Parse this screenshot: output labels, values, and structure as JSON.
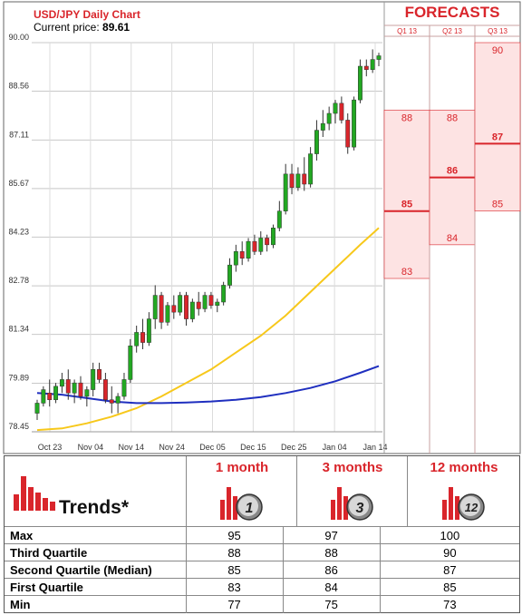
{
  "header": {
    "chart_title": "USD/JPY Daily Chart",
    "price_label": "Current price:",
    "price_value": "89.61",
    "forecasts_title": "FORECASTS"
  },
  "colors": {
    "accent_red": "#d9252b",
    "band_fill": "#fde3e3",
    "ma_short": "#f7c81b",
    "ma_long": "#1f2fbf",
    "candle_up": "#22a822",
    "candle_down": "#d9252b"
  },
  "chart_data": [
    {
      "type": "candlestick",
      "title": "USD/JPY Daily Chart",
      "subtitle": "Current price: 89.61",
      "ylim": [
        78.45,
        90.0
      ],
      "yticks": [
        "90.00",
        "88.56",
        "87.11",
        "85.67",
        "84.23",
        "82.78",
        "81.34",
        "79.89",
        "78.45"
      ],
      "xticks": [
        "Oct 23",
        "Nov 04",
        "Nov 14",
        "Nov 24",
        "Dec 05",
        "Dec 15",
        "Dec 25",
        "Jan 04",
        "Jan 14"
      ],
      "grid": true,
      "candles": [
        {
          "o": 79.0,
          "h": 79.4,
          "l": 78.8,
          "c": 79.3
        },
        {
          "o": 79.3,
          "h": 79.8,
          "l": 79.2,
          "c": 79.7
        },
        {
          "o": 79.6,
          "h": 80.0,
          "l": 79.2,
          "c": 79.4
        },
        {
          "o": 79.4,
          "h": 79.9,
          "l": 79.3,
          "c": 79.8
        },
        {
          "o": 79.8,
          "h": 80.2,
          "l": 79.6,
          "c": 80.0
        },
        {
          "o": 80.0,
          "h": 80.3,
          "l": 79.4,
          "c": 79.6
        },
        {
          "o": 79.6,
          "h": 80.0,
          "l": 79.3,
          "c": 79.9
        },
        {
          "o": 79.9,
          "h": 80.1,
          "l": 79.4,
          "c": 79.5
        },
        {
          "o": 79.5,
          "h": 79.8,
          "l": 79.2,
          "c": 79.7
        },
        {
          "o": 79.7,
          "h": 80.5,
          "l": 79.5,
          "c": 80.3
        },
        {
          "o": 80.3,
          "h": 80.5,
          "l": 79.9,
          "c": 80.0
        },
        {
          "o": 80.0,
          "h": 80.2,
          "l": 79.3,
          "c": 79.4
        },
        {
          "o": 79.4,
          "h": 79.8,
          "l": 79.0,
          "c": 79.3
        },
        {
          "o": 79.3,
          "h": 79.6,
          "l": 79.0,
          "c": 79.5
        },
        {
          "o": 79.5,
          "h": 80.2,
          "l": 79.4,
          "c": 80.0
        },
        {
          "o": 80.0,
          "h": 81.2,
          "l": 79.9,
          "c": 81.0
        },
        {
          "o": 81.0,
          "h": 81.6,
          "l": 80.8,
          "c": 81.4
        },
        {
          "o": 81.4,
          "h": 81.8,
          "l": 80.9,
          "c": 81.1
        },
        {
          "o": 81.1,
          "h": 82.0,
          "l": 81.0,
          "c": 81.8
        },
        {
          "o": 81.8,
          "h": 82.8,
          "l": 81.5,
          "c": 82.5
        },
        {
          "o": 82.5,
          "h": 82.6,
          "l": 81.5,
          "c": 81.7
        },
        {
          "o": 81.7,
          "h": 82.3,
          "l": 81.6,
          "c": 82.2
        },
        {
          "o": 82.2,
          "h": 82.5,
          "l": 81.8,
          "c": 82.0
        },
        {
          "o": 82.0,
          "h": 82.6,
          "l": 81.9,
          "c": 82.5
        },
        {
          "o": 82.5,
          "h": 82.6,
          "l": 81.6,
          "c": 81.8
        },
        {
          "o": 81.8,
          "h": 82.4,
          "l": 81.7,
          "c": 82.3
        },
        {
          "o": 82.3,
          "h": 82.6,
          "l": 81.9,
          "c": 82.1
        },
        {
          "o": 82.1,
          "h": 82.6,
          "l": 82.0,
          "c": 82.5
        },
        {
          "o": 82.5,
          "h": 82.6,
          "l": 82.1,
          "c": 82.2
        },
        {
          "o": 82.2,
          "h": 82.4,
          "l": 82.0,
          "c": 82.3
        },
        {
          "o": 82.3,
          "h": 82.9,
          "l": 82.2,
          "c": 82.8
        },
        {
          "o": 82.8,
          "h": 83.6,
          "l": 82.7,
          "c": 83.4
        },
        {
          "o": 83.4,
          "h": 84.0,
          "l": 83.2,
          "c": 83.8
        },
        {
          "o": 83.8,
          "h": 84.1,
          "l": 83.4,
          "c": 83.6
        },
        {
          "o": 83.6,
          "h": 84.2,
          "l": 83.5,
          "c": 84.1
        },
        {
          "o": 84.1,
          "h": 84.3,
          "l": 83.7,
          "c": 83.8
        },
        {
          "o": 83.8,
          "h": 84.4,
          "l": 83.7,
          "c": 84.2
        },
        {
          "o": 84.2,
          "h": 84.3,
          "l": 83.8,
          "c": 84.0
        },
        {
          "o": 84.0,
          "h": 84.6,
          "l": 83.9,
          "c": 84.5
        },
        {
          "o": 84.5,
          "h": 85.3,
          "l": 84.4,
          "c": 85.0
        },
        {
          "o": 85.0,
          "h": 86.4,
          "l": 84.9,
          "c": 86.1
        },
        {
          "o": 86.1,
          "h": 86.4,
          "l": 85.5,
          "c": 85.7
        },
        {
          "o": 85.7,
          "h": 86.3,
          "l": 85.6,
          "c": 86.1
        },
        {
          "o": 86.1,
          "h": 86.6,
          "l": 85.6,
          "c": 85.8
        },
        {
          "o": 85.8,
          "h": 86.9,
          "l": 85.7,
          "c": 86.7
        },
        {
          "o": 86.7,
          "h": 87.7,
          "l": 86.5,
          "c": 87.4
        },
        {
          "o": 87.4,
          "h": 88.0,
          "l": 87.2,
          "c": 87.6
        },
        {
          "o": 87.6,
          "h": 88.1,
          "l": 87.4,
          "c": 87.9
        },
        {
          "o": 87.9,
          "h": 88.3,
          "l": 87.6,
          "c": 88.2
        },
        {
          "o": 88.2,
          "h": 88.4,
          "l": 87.6,
          "c": 87.7
        },
        {
          "o": 87.7,
          "h": 87.9,
          "l": 86.7,
          "c": 86.9
        },
        {
          "o": 86.9,
          "h": 88.4,
          "l": 86.8,
          "c": 88.3
        },
        {
          "o": 88.3,
          "h": 89.5,
          "l": 88.2,
          "c": 89.3
        },
        {
          "o": 89.3,
          "h": 89.5,
          "l": 89.0,
          "c": 89.2
        },
        {
          "o": 89.2,
          "h": 89.8,
          "l": 89.1,
          "c": 89.5
        },
        {
          "o": 89.5,
          "h": 89.7,
          "l": 89.3,
          "c": 89.61
        }
      ],
      "moving_averages": [
        {
          "color": "#f7c81b",
          "points": [
            [
              0,
              78.5
            ],
            [
              4,
              78.55
            ],
            [
              8,
              78.7
            ],
            [
              12,
              78.9
            ],
            [
              16,
              79.15
            ],
            [
              20,
              79.5
            ],
            [
              24,
              79.9
            ],
            [
              28,
              80.3
            ],
            [
              32,
              80.8
            ],
            [
              36,
              81.3
            ],
            [
              40,
              81.9
            ],
            [
              44,
              82.6
            ],
            [
              48,
              83.3
            ],
            [
              52,
              84.0
            ],
            [
              55,
              84.5
            ]
          ]
        },
        {
          "color": "#1f2fbf",
          "points": [
            [
              0,
              79.6
            ],
            [
              4,
              79.55
            ],
            [
              8,
              79.45
            ],
            [
              12,
              79.35
            ],
            [
              16,
              79.3
            ],
            [
              20,
              79.3
            ],
            [
              24,
              79.32
            ],
            [
              28,
              79.35
            ],
            [
              32,
              79.4
            ],
            [
              36,
              79.48
            ],
            [
              40,
              79.6
            ],
            [
              44,
              79.75
            ],
            [
              48,
              79.95
            ],
            [
              52,
              80.2
            ],
            [
              55,
              80.4
            ]
          ]
        }
      ]
    },
    {
      "type": "forecast-bands",
      "title": "FORECASTS",
      "ylim": [
        78.45,
        90.0
      ],
      "columns": [
        {
          "label": "Q1 13",
          "low": 83,
          "median": 85,
          "high": 88
        },
        {
          "label": "Q2 13",
          "low": 84,
          "median": 86,
          "high": 88
        },
        {
          "label": "Q3 13",
          "low": 85,
          "median": 87,
          "high": 90
        }
      ]
    }
  ],
  "trends": {
    "title": "Trends*",
    "horizons": [
      {
        "label": "1 month",
        "icon_badge": "1"
      },
      {
        "label": "3 months",
        "icon_badge": "3"
      },
      {
        "label": "12 months",
        "icon_badge": "12"
      }
    ],
    "rows": [
      {
        "label": "Max",
        "values": [
          "95",
          "97",
          "100"
        ]
      },
      {
        "label": "Third Quartile",
        "values": [
          "88",
          "88",
          "90"
        ]
      },
      {
        "label": "Second Quartile (Median)",
        "values": [
          "85",
          "86",
          "87"
        ]
      },
      {
        "label": "First Quartile",
        "values": [
          "83",
          "84",
          "85"
        ]
      },
      {
        "label": "Min",
        "values": [
          "77",
          "75",
          "73"
        ]
      }
    ]
  }
}
